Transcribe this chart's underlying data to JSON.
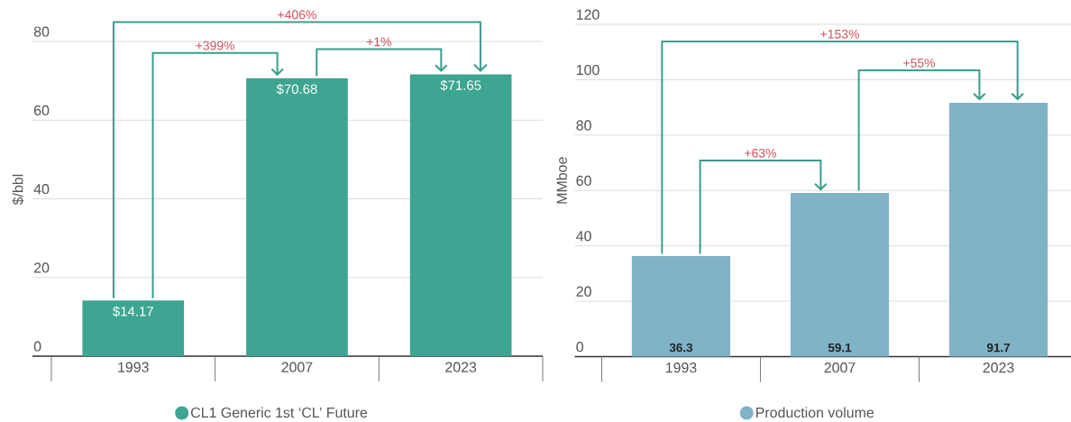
{
  "chart_data": [
    {
      "type": "bar",
      "ylabel": "$/bbl",
      "categories": [
        "1993",
        "2007",
        "2023"
      ],
      "series": [
        {
          "name": "CL1 Generic 1st ‘CL’ Future",
          "color": "#3DA591",
          "values": [
            14.17,
            70.68,
            71.65
          ],
          "value_labels": [
            "$14.17",
            "$70.68",
            "$71.65"
          ]
        }
      ],
      "ylim": [
        0,
        80
      ],
      "yticks": [
        0,
        20,
        40,
        60,
        80
      ],
      "grid": "y",
      "legend": "bottom",
      "annotations": [
        "+406%",
        "+399%",
        "+1%"
      ]
    },
    {
      "type": "bar",
      "ylabel": "MMboe",
      "categories": [
        "1993",
        "2007",
        "2023"
      ],
      "series": [
        {
          "name": "Production volume",
          "color": "#80B2C8",
          "values": [
            36.3,
            59.1,
            91.7
          ]
        }
      ],
      "ylim": [
        0,
        120
      ],
      "yticks": [
        0,
        20,
        40,
        60,
        80,
        100,
        120
      ],
      "grid": "y",
      "legend": "bottom",
      "data_labels": true,
      "annotations": [
        "+153%",
        "+63%",
        "+55%"
      ]
    }
  ]
}
